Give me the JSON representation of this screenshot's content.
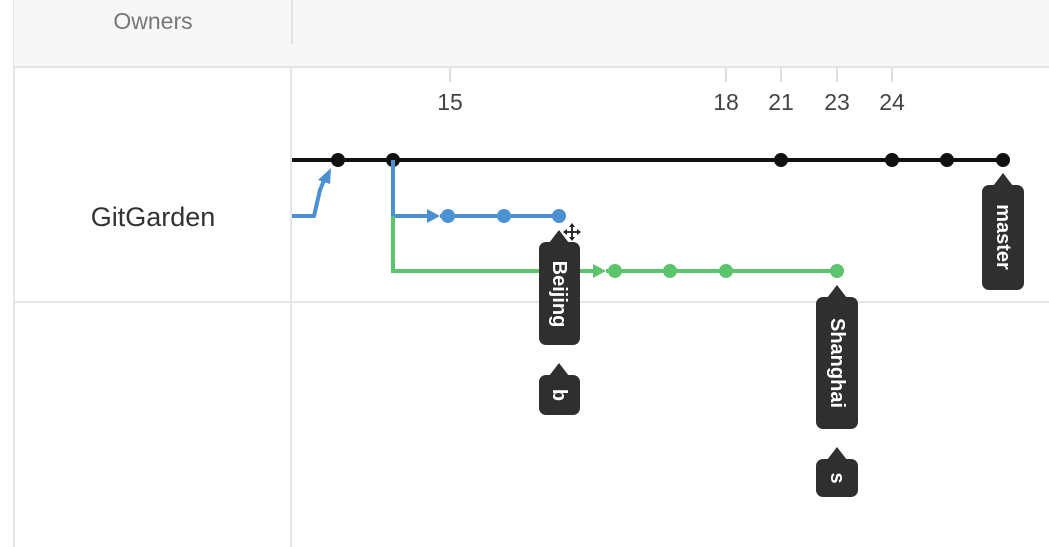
{
  "table": {
    "header": {
      "owners_label": "Owners"
    },
    "rows": [
      {
        "owner": "GitGarden"
      }
    ]
  },
  "timeline": {
    "ticks": [
      "15",
      "18",
      "21",
      "23",
      "24"
    ]
  },
  "branches": [
    {
      "name": "master",
      "color": "#111111"
    },
    {
      "name": "Beijing",
      "color": "#4a90d2"
    },
    {
      "name": "Shanghai",
      "color": "#5dc46e"
    }
  ],
  "tags": [
    {
      "label": "master"
    },
    {
      "label": "Beijing"
    },
    {
      "label": "b"
    },
    {
      "label": "Shanghai"
    },
    {
      "label": "s"
    }
  ],
  "colors": {
    "tag_background": "#2f2f2f",
    "header_background": "#f7f7f7",
    "grid": "#e6e6e6"
  },
  "icons": {
    "cursor": "move-cursor-icon"
  }
}
